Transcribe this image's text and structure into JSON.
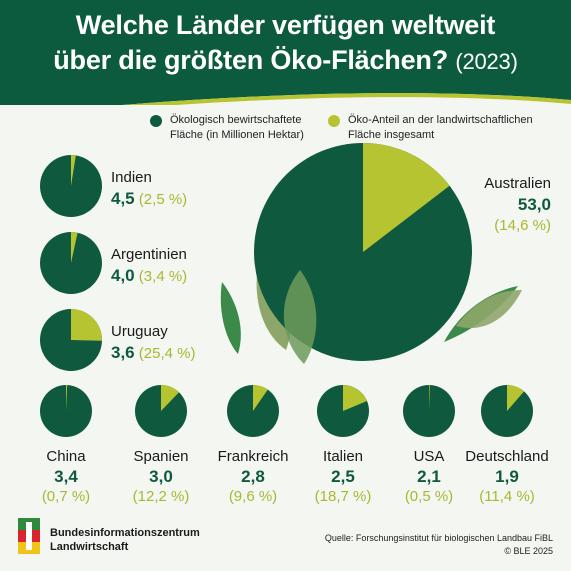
{
  "title": {
    "line1": "Welche Länder verfügen weltweit",
    "line2": "über die größten Öko-Flächen?",
    "year": "(2023)"
  },
  "legend": {
    "area_line1": "Ökologisch bewirtschaftete",
    "area_line2": "Fläche (in Millionen Hektar)",
    "share_line1": "Öko-Anteil an der landwirtschaftlichen",
    "share_line2": "Fläche insgesamt"
  },
  "colors": {
    "header": "#0d5b3e",
    "dark_green": "#0f5a3e",
    "lime": "#b7c431",
    "share_text": "#a9b832",
    "background": "#f4f6f1"
  },
  "chart_data": {
    "type": "pie",
    "value_unit": "Millionen Hektar",
    "share_unit": "%",
    "countries": [
      {
        "name": "Australien",
        "value": 53.0,
        "value_label": "53,0",
        "share": 14.6,
        "share_label": "(14,6 %)"
      },
      {
        "name": "Indien",
        "value": 4.5,
        "value_label": "4,5",
        "share": 2.5,
        "share_label": "(2,5 %)"
      },
      {
        "name": "Argentinien",
        "value": 4.0,
        "value_label": "4,0",
        "share": 3.4,
        "share_label": "(3,4 %)"
      },
      {
        "name": "Uruguay",
        "value": 3.6,
        "value_label": "3,6",
        "share": 25.4,
        "share_label": "(25,4 %)"
      },
      {
        "name": "China",
        "value": 3.4,
        "value_label": "3,4",
        "share": 0.7,
        "share_label": "(0,7 %)"
      },
      {
        "name": "Spanien",
        "value": 3.0,
        "value_label": "3,0",
        "share": 12.2,
        "share_label": "(12,2 %)"
      },
      {
        "name": "Frankreich",
        "value": 2.8,
        "value_label": "2,8",
        "share": 9.6,
        "share_label": "(9,6 %)"
      },
      {
        "name": "Italien",
        "value": 2.5,
        "value_label": "2,5",
        "share": 18.7,
        "share_label": "(18,7 %)"
      },
      {
        "name": "USA",
        "value": 2.1,
        "value_label": "2,1",
        "share": 0.5,
        "share_label": "(0,5 %)"
      },
      {
        "name": "Deutschland",
        "value": 1.9,
        "value_label": "1,9",
        "share": 11.4,
        "share_label": "(11,4 %)"
      }
    ]
  },
  "footer": {
    "org_line1": "Bundesinformationszentrum",
    "org_line2": "Landwirtschaft",
    "source": "Quelle: Forschungsinstitut für biologischen Landbau FiBL",
    "copyright": "© BLE 2025"
  }
}
